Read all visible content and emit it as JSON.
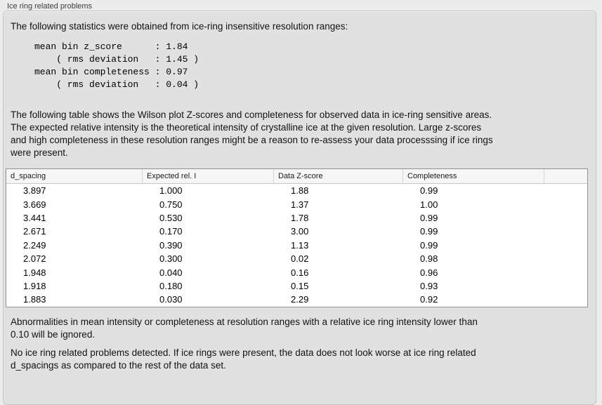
{
  "panel": {
    "title": "Ice ring related problems"
  },
  "intro": "The following statistics were obtained from ice-ring insensitive resolution ranges:",
  "stats_block": "mean bin z_score      : 1.84\n    ( rms deviation   : 1.45 )\nmean bin completeness : 0.97\n    ( rms deviation   : 0.04 )",
  "description": "The following table shows the Wilson plot Z-scores and completeness for observed data in ice-ring sensitive areas.\nThe expected relative intensity is the theoretical intensity of crystalline ice at the given resolution. Large z-scores\nand high completeness in these resolution ranges might be a reason to re-assess your data processsing if ice rings\nwere present.",
  "table": {
    "columns": [
      "d_spacing",
      "Expected rel. I",
      "Data Z-score",
      "Completeness"
    ],
    "rows": [
      [
        "3.897",
        "1.000",
        "1.88",
        "0.99"
      ],
      [
        "3.669",
        "0.750",
        "1.37",
        "1.00"
      ],
      [
        "3.441",
        "0.530",
        "1.78",
        "0.99"
      ],
      [
        "2.671",
        "0.170",
        "3.00",
        "0.99"
      ],
      [
        "2.249",
        "0.390",
        "1.13",
        "0.99"
      ],
      [
        "2.072",
        "0.300",
        "0.02",
        "0.98"
      ],
      [
        "1.948",
        "0.040",
        "0.16",
        "0.96"
      ],
      [
        "1.918",
        "0.180",
        "0.15",
        "0.93"
      ],
      [
        "1.883",
        "0.030",
        "2.29",
        "0.92"
      ]
    ]
  },
  "ignore_note": "Abnormalities in mean intensity or completeness at resolution ranges with a relative ice ring intensity lower than\n0.10 will be ignored.",
  "conclusion": "No ice ring related problems detected. If ice rings were present, the data does not look worse at ice ring related\nd_spacings as compared to the rest of the data set.",
  "colors": {
    "window_bg": "#ececec",
    "panel_bg": "#e1e1e1",
    "table_header_bg": "#f6f6f6",
    "table_border": "#919191",
    "text": "#121212"
  }
}
